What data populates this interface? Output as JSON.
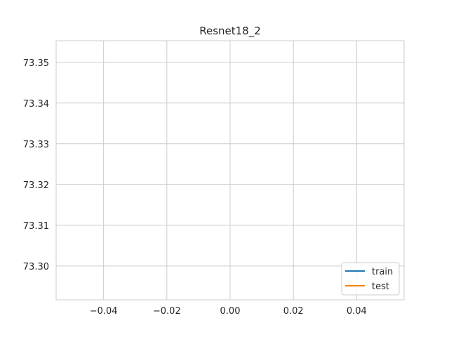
{
  "chart_data": {
    "type": "line",
    "title": "Resnet18_2",
    "xlabel": "",
    "ylabel": "",
    "xlim": [
      -0.055,
      0.055
    ],
    "ylim": [
      73.2917,
      73.3553
    ],
    "x_ticks": [
      -0.04,
      -0.02,
      0.0,
      0.02,
      0.04
    ],
    "x_tick_labels": [
      "−0.04",
      "−0.02",
      "0.00",
      "0.02",
      "0.04"
    ],
    "y_ticks": [
      73.3,
      73.31,
      73.32,
      73.33,
      73.34,
      73.35
    ],
    "y_tick_labels": [
      "73.30",
      "73.31",
      "73.32",
      "73.33",
      "73.34",
      "73.35"
    ],
    "grid": true,
    "legend_position": "lower-right",
    "series": [
      {
        "name": "train",
        "color": "#1f77b4",
        "x": [],
        "y": []
      },
      {
        "name": "test",
        "color": "#ff7f0e",
        "x": [],
        "y": []
      }
    ]
  },
  "colors": {
    "grid": "#cccccc",
    "axes_edge": "#cccccc",
    "background": "#ffffff",
    "text": "#262626"
  }
}
